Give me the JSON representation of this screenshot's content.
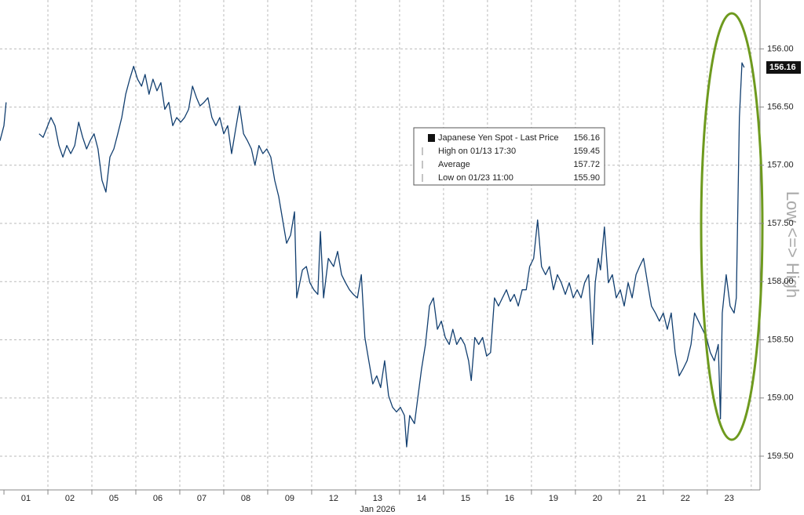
{
  "chart_data": {
    "type": "line",
    "y_inverted": true,
    "y_axis_label": "Low <=> High",
    "x_label": "Jan 2026",
    "grid": true,
    "xlim": [
      -0.09,
      17.2
    ],
    "ylim": [
      155.58,
      159.79
    ],
    "xticks": [
      {
        "value": 0,
        "label": "01"
      },
      {
        "value": 1,
        "label": "02"
      },
      {
        "value": 2,
        "label": "05"
      },
      {
        "value": 3,
        "label": "06"
      },
      {
        "value": 4,
        "label": "07"
      },
      {
        "value": 5,
        "label": "08"
      },
      {
        "value": 6,
        "label": "09"
      },
      {
        "value": 7,
        "label": "12"
      },
      {
        "value": 8,
        "label": "13"
      },
      {
        "value": 9,
        "label": "14"
      },
      {
        "value": 10,
        "label": "15"
      },
      {
        "value": 11,
        "label": "16"
      },
      {
        "value": 12,
        "label": "19"
      },
      {
        "value": 13,
        "label": "20"
      },
      {
        "value": 14,
        "label": "21"
      },
      {
        "value": 15,
        "label": "22"
      },
      {
        "value": 16,
        "label": "23"
      }
    ],
    "yticks": [
      {
        "value": 156,
        "label": "156.00"
      },
      {
        "value": 156.5,
        "label": "156.50"
      },
      {
        "value": 157,
        "label": "157.00"
      },
      {
        "value": 157.5,
        "label": "157.50"
      },
      {
        "value": 158,
        "label": "158.00"
      },
      {
        "value": 158.5,
        "label": "158.50"
      },
      {
        "value": 159,
        "label": "159.00"
      },
      {
        "value": 159.5,
        "label": "159.50"
      }
    ],
    "stats": [
      {
        "name": "Japanese Yen Spot - Last Price",
        "value": 156.16
      },
      {
        "name": "High on 01/13 17:30",
        "value": 159.45
      },
      {
        "name": "Average",
        "value": 157.72
      },
      {
        "name": "Low on 01/23 11:00",
        "value": 155.9,
        "value_label": "155.90"
      }
    ],
    "last_price": 156.16,
    "series": [
      {
        "name": "Japanese Yen Spot - Last Price",
        "color": "#123f70",
        "x": [
          -0.09,
          0,
          0.05,
          0.46,
          0.8,
          0.89,
          1.07,
          1.16,
          1.25,
          1.34,
          1.43,
          1.52,
          1.61,
          1.7,
          1.79,
          1.88,
          1.96,
          2.05,
          2.14,
          2.23,
          2.32,
          2.41,
          2.5,
          2.59,
          2.68,
          2.77,
          2.86,
          2.95,
          3.04,
          3.13,
          3.21,
          3.3,
          3.39,
          3.48,
          3.57,
          3.66,
          3.75,
          3.84,
          3.93,
          4.02,
          4.11,
          4.2,
          4.29,
          4.38,
          4.46,
          4.55,
          4.64,
          4.73,
          4.82,
          4.91,
          5,
          5.09,
          5.18,
          5.27,
          5.36,
          5.45,
          5.54,
          5.63,
          5.71,
          5.8,
          5.89,
          5.98,
          6.07,
          6.16,
          6.25,
          6.34,
          6.43,
          6.52,
          6.61,
          6.66,
          6.79,
          6.88,
          6.96,
          7.05,
          7.14,
          7.2,
          7.27,
          7.38,
          7.5,
          7.59,
          7.68,
          7.77,
          7.86,
          7.95,
          8.04,
          8.13,
          8.21,
          8.3,
          8.39,
          8.48,
          8.57,
          8.66,
          8.75,
          8.84,
          8.93,
          9.02,
          9.11,
          9.16,
          9.23,
          9.34,
          9.41,
          9.5,
          9.59,
          9.68,
          9.77,
          9.86,
          9.95,
          10.04,
          10.13,
          10.21,
          10.3,
          10.39,
          10.48,
          10.57,
          10.63,
          10.71,
          10.8,
          10.89,
          10.98,
          11.07,
          11.16,
          11.25,
          11.34,
          11.43,
          11.52,
          11.61,
          11.7,
          11.79,
          11.88,
          11.96,
          12.05,
          12.14,
          12.23,
          12.32,
          12.41,
          12.5,
          12.59,
          12.68,
          12.77,
          12.86,
          12.95,
          13.04,
          13.13,
          13.21,
          13.3,
          13.39,
          13.45,
          13.52,
          13.57,
          13.66,
          13.75,
          13.84,
          13.93,
          14.02,
          14.11,
          14.2,
          14.29,
          14.38,
          14.46,
          14.55,
          14.64,
          14.73,
          14.82,
          14.91,
          15,
          15.09,
          15.18,
          15.27,
          15.36,
          15.45,
          15.54,
          15.63,
          15.71,
          15.8,
          15.89,
          15.98,
          16.07,
          16.16,
          16.25,
          16.3,
          16.34,
          16.43,
          16.52,
          16.61,
          16.66,
          16.73,
          16.79,
          16.84
        ],
        "values": [
          156.79,
          156.66,
          156.46,
          null,
          156.73,
          156.76,
          156.59,
          156.66,
          156.83,
          156.93,
          156.83,
          156.9,
          156.83,
          156.63,
          156.76,
          156.86,
          156.79,
          156.73,
          156.86,
          157.13,
          157.23,
          156.93,
          156.86,
          156.73,
          156.59,
          156.39,
          156.26,
          156.15,
          156.26,
          156.32,
          156.22,
          156.39,
          156.26,
          156.36,
          156.29,
          156.52,
          156.46,
          156.66,
          156.59,
          156.63,
          156.59,
          156.52,
          156.32,
          156.42,
          156.49,
          156.46,
          156.42,
          156.59,
          156.66,
          156.59,
          156.73,
          156.66,
          156.9,
          156.69,
          156.49,
          156.73,
          156.79,
          156.86,
          157,
          156.83,
          156.9,
          156.86,
          156.93,
          157.13,
          157.27,
          157.47,
          157.67,
          157.6,
          157.4,
          158.14,
          157.9,
          157.87,
          158.01,
          158.07,
          158.11,
          157.57,
          158.14,
          157.8,
          157.87,
          157.74,
          157.94,
          158.01,
          158.07,
          158.11,
          158.14,
          157.94,
          158.48,
          158.68,
          158.88,
          158.81,
          158.91,
          158.68,
          158.98,
          159.08,
          159.12,
          159.08,
          159.15,
          159.42,
          159.15,
          159.22,
          159.01,
          158.75,
          158.54,
          158.21,
          158.14,
          158.41,
          158.34,
          158.48,
          158.54,
          158.41,
          158.54,
          158.48,
          158.54,
          158.68,
          158.85,
          158.48,
          158.54,
          158.48,
          158.64,
          158.61,
          158.14,
          158.21,
          158.14,
          158.07,
          158.17,
          158.11,
          158.21,
          158.07,
          158.07,
          157.87,
          157.8,
          157.47,
          157.87,
          157.94,
          157.87,
          158.07,
          157.94,
          158.01,
          158.11,
          158.01,
          158.14,
          158.07,
          158.14,
          158.01,
          157.94,
          158.54,
          158.01,
          157.8,
          157.9,
          157.53,
          158.01,
          157.94,
          158.14,
          158.07,
          158.21,
          158.01,
          158.14,
          157.94,
          157.87,
          157.8,
          158.01,
          158.21,
          158.27,
          158.34,
          158.27,
          158.41,
          158.27,
          158.61,
          158.81,
          158.75,
          158.68,
          158.54,
          158.27,
          158.34,
          158.41,
          158.48,
          158.61,
          158.68,
          158.54,
          159.18,
          158.27,
          157.94,
          158.21,
          158.27,
          158.14,
          156.59,
          156.12,
          156.16
        ]
      }
    ]
  }
}
